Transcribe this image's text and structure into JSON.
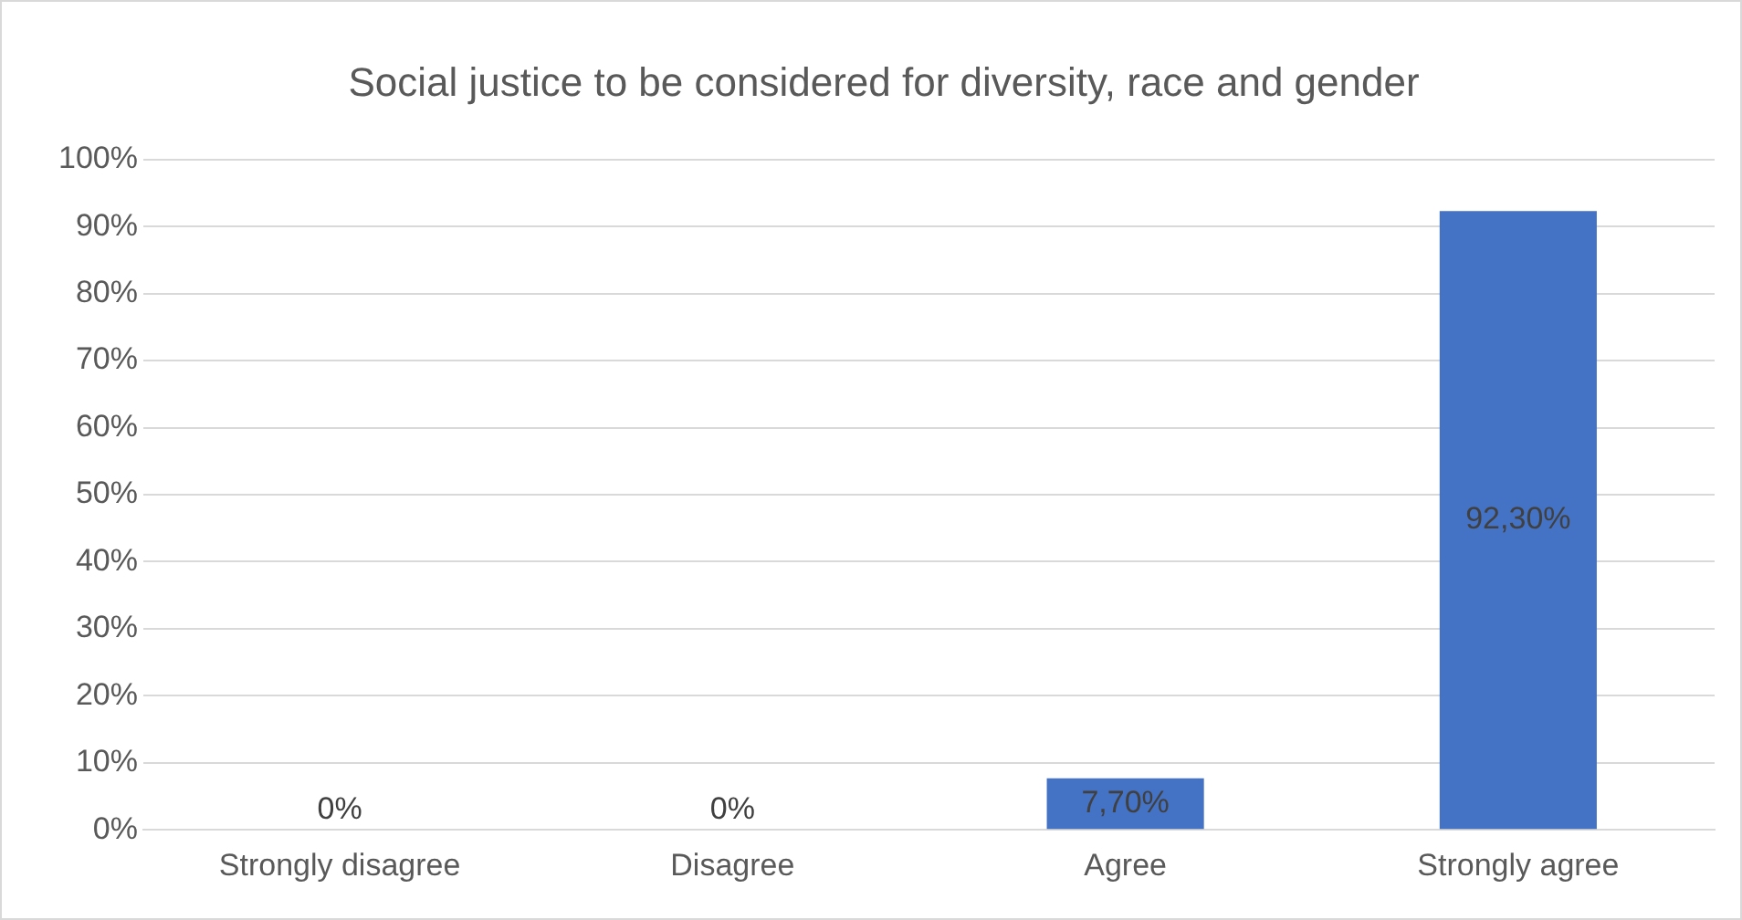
{
  "chart_data": {
    "type": "bar",
    "title": "Social justice to be considered for diversity, race and gender",
    "categories": [
      "Strongly disagree",
      "Disagree",
      "Agree",
      "Strongly agree"
    ],
    "values": [
      0,
      0,
      7.7,
      92.3
    ],
    "value_labels": [
      "0%",
      "0%",
      "7,70%",
      "92,30%"
    ],
    "color": "#4472c4",
    "ylim": [
      0,
      100
    ],
    "yticks": [
      {
        "value": 0,
        "label": "0%"
      },
      {
        "value": 10,
        "label": "10%"
      },
      {
        "value": 20,
        "label": "20%"
      },
      {
        "value": 30,
        "label": "30%"
      },
      {
        "value": 40,
        "label": "40%"
      },
      {
        "value": 50,
        "label": "50%"
      },
      {
        "value": 60,
        "label": "60%"
      },
      {
        "value": 70,
        "label": "70%"
      },
      {
        "value": 80,
        "label": "80%"
      },
      {
        "value": 90,
        "label": "90%"
      },
      {
        "value": 100,
        "label": "100%"
      }
    ],
    "grid": "y"
  }
}
